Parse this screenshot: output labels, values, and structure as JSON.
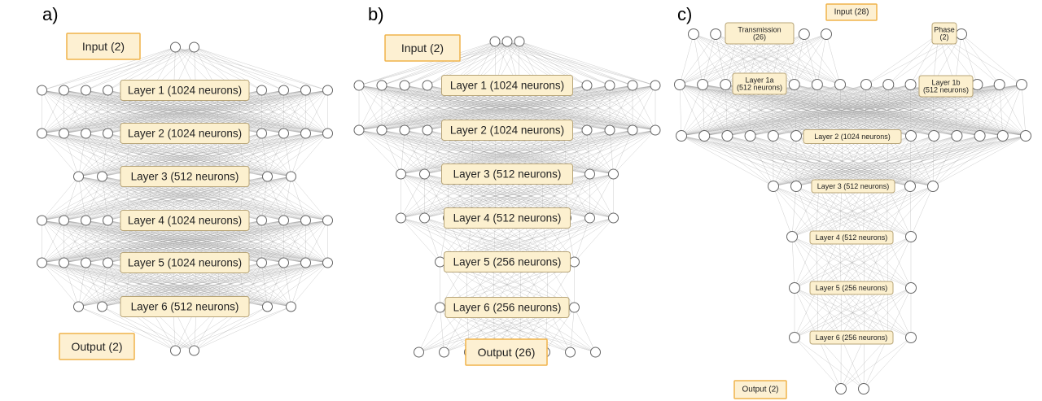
{
  "panels": [
    {
      "id": "a",
      "label": "a)",
      "layers": [
        {
          "nodes": 2,
          "text": ""
        },
        {
          "nodes": 14,
          "text": "Layer 1 (1024 neurons)"
        },
        {
          "nodes": 14,
          "text": "Layer 2 (1024 neurons)"
        },
        {
          "nodes": 10,
          "text": "Layer 3 (512 neurons)"
        },
        {
          "nodes": 14,
          "text": "Layer 4 (1024 neurons)"
        },
        {
          "nodes": 14,
          "text": "Layer 5 (1024 neurons)"
        },
        {
          "nodes": 10,
          "text": "Layer 6 (512 neurons)"
        },
        {
          "nodes": 2,
          "text": ""
        }
      ],
      "input_label": "Input (2)",
      "output_label": "Output (2)"
    },
    {
      "id": "b",
      "label": "b)",
      "layers": [
        {
          "nodes": 3,
          "text": ""
        },
        {
          "nodes": 14,
          "text": "Layer 1 (1024 neurons)"
        },
        {
          "nodes": 14,
          "text": "Layer 2 (1024 neurons)"
        },
        {
          "nodes": 10,
          "text": "Layer 3 (512 neurons)"
        },
        {
          "nodes": 10,
          "text": "Layer 4 (512 neurons)"
        },
        {
          "nodes": 6,
          "text": "Layer 5 (256 neurons)"
        },
        {
          "nodes": 6,
          "text": "Layer 6 (256 neurons)"
        },
        {
          "nodes": 8,
          "text": ""
        }
      ],
      "input_label": "Input (2)",
      "output_label": "Output (26)"
    },
    {
      "id": "c",
      "label": "c)",
      "input_label": "Input (28)",
      "transmission_label": [
        "Transmission",
        "(26)"
      ],
      "phase_label": [
        "Phase",
        "(2)"
      ],
      "layer1a_label": [
        "Layer 1a",
        "(512 neurons)"
      ],
      "layer1b_label": [
        "Layer 1b",
        "(512 neurons)"
      ],
      "layer2_label": "Layer 2 (1024 neurons)",
      "layer3_label": "Layer 3 (512 neurons)",
      "layer4_label": "Layer 4 (512 neurons)",
      "layer5_label": "Layer 5 (256 neurons)",
      "layer6_label": "Layer 6 (256 neurons)",
      "output_label": "Output (2)"
    }
  ]
}
